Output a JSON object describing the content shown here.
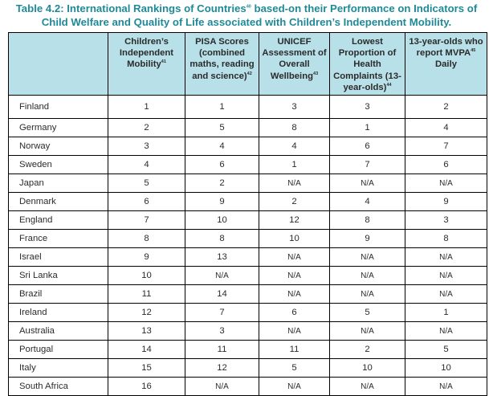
{
  "caption": {
    "prefix": "Table 4.2: International Rankings of Countries",
    "sup": "40",
    "suffix": " based-on their Performance on Indicators of Child Welfare and Quality of Life associated with Children’s Independent Mobility."
  },
  "headers": [
    {
      "text": "",
      "sup": ""
    },
    {
      "text": "Children’s Independent Mobility",
      "sup": "41"
    },
    {
      "text": "PISA Scores (combined maths, reading and science)",
      "sup": "42"
    },
    {
      "text": "UNICEF Assessment of Overall Wellbeing",
      "sup": "43"
    },
    {
      "text": "Lowest Proportion of Health Complaints (13-year-olds)",
      "sup": "44"
    },
    {
      "text": "13-year-olds who report MVPA",
      "sup": "45",
      "after": " Daily"
    }
  ],
  "rows": [
    [
      "Finland",
      "1",
      "1",
      "3",
      "3",
      "2"
    ],
    [
      "Germany",
      "2",
      "5",
      "8",
      "1",
      "4"
    ],
    [
      "Norway",
      "3",
      "4",
      "4",
      "6",
      "7"
    ],
    [
      "Sweden",
      "4",
      "6",
      "1",
      "7",
      "6"
    ],
    [
      "Japan",
      "5",
      "2",
      "N/A",
      "N/A",
      "N/A"
    ],
    [
      "Denmark",
      "6",
      "9",
      "2",
      "4",
      "9"
    ],
    [
      "England",
      "7",
      "10",
      "12",
      "8",
      "3"
    ],
    [
      "France",
      "8",
      "8",
      "10",
      "9",
      "8"
    ],
    [
      "Israel",
      "9",
      "13",
      "N/A",
      "N/A",
      "N/A"
    ],
    [
      "Sri Lanka",
      "10",
      "N/A",
      "N/A",
      "N/A",
      "N/A"
    ],
    [
      "Brazil",
      "11",
      "14",
      "N/A",
      "N/A",
      "N/A"
    ],
    [
      "Ireland",
      "12",
      "7",
      "6",
      "5",
      "1"
    ],
    [
      "Australia",
      "13",
      "3",
      "N/A",
      "N/A",
      "N/A"
    ],
    [
      "Portugal",
      "14",
      "11",
      "11",
      "2",
      "5"
    ],
    [
      "Italy",
      "15",
      "12",
      "5",
      "10",
      "10"
    ],
    [
      "South Africa",
      "16",
      "N/A",
      "N/A",
      "N/A",
      "N/A"
    ]
  ],
  "colors": {
    "caption": "#1f8a97",
    "header_bg": "#b8e0e8",
    "border": "#000000"
  }
}
